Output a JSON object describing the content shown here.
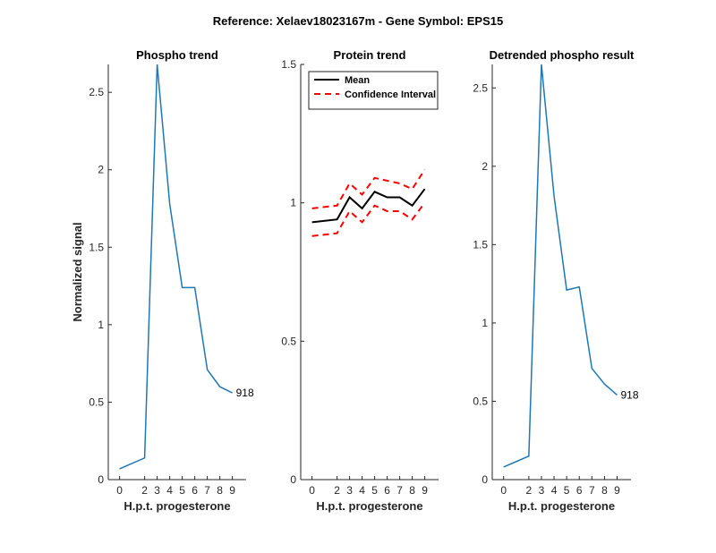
{
  "figure": {
    "title": "Reference:  Xelaev18023167m - Gene Symbol:  EPS15"
  },
  "chart_data": [
    {
      "type": "line",
      "title": "Phospho trend",
      "xlabel": "H.p.t. progesterone",
      "ylabel": "Normalized signal",
      "x": [
        0,
        2,
        3,
        4,
        5,
        6,
        7,
        8,
        9
      ],
      "xticks": [
        "0",
        "2",
        "3",
        "4",
        "5",
        "6",
        "7",
        "8",
        "9"
      ],
      "xlim": [
        -0.9,
        10.1
      ],
      "ylim": [
        0,
        2.68
      ],
      "yticks": [
        "0",
        "0.5",
        "1",
        "1.5",
        "2",
        "2.5"
      ],
      "series": [
        {
          "color": "#1f77b4",
          "values": [
            0.07,
            0.14,
            2.68,
            1.78,
            1.24,
            1.24,
            0.71,
            0.6,
            0.56
          ]
        }
      ],
      "annotation": {
        "text": "918",
        "x": 9,
        "y": 0.56
      },
      "grid": false,
      "legend": null
    },
    {
      "type": "line",
      "title": "Protein trend",
      "xlabel": "H.p.t. progesterone",
      "ylabel": "",
      "x": [
        0,
        2,
        3,
        4,
        5,
        6,
        7,
        8,
        9
      ],
      "xticks": [
        "0",
        "2",
        "3",
        "4",
        "5",
        "6",
        "7",
        "8",
        "9"
      ],
      "xlim": [
        -0.9,
        10.1
      ],
      "ylim": [
        0,
        1.5
      ],
      "yticks": [
        "0",
        "0.5",
        "1",
        "1.5"
      ],
      "series": [
        {
          "name": "Mean",
          "color": "#000000",
          "style": "solid",
          "values": [
            0.93,
            0.94,
            1.02,
            0.98,
            1.04,
            1.02,
            1.02,
            0.99,
            1.05
          ]
        },
        {
          "name": "Confidence Interval",
          "color": "#ff0000",
          "style": "dashed",
          "values": [
            0.98,
            0.99,
            1.07,
            1.03,
            1.09,
            1.08,
            1.07,
            1.05,
            1.12
          ]
        },
        {
          "color": "#ff0000",
          "style": "dashed",
          "values": [
            0.88,
            0.89,
            0.97,
            0.93,
            0.99,
            0.97,
            0.97,
            0.94,
            1.0
          ]
        }
      ],
      "legend": "top-right",
      "grid": false
    },
    {
      "type": "line",
      "title": "Detrended phospho result",
      "xlabel": "H.p.t. progesterone",
      "ylabel": "",
      "x": [
        0,
        2,
        3,
        4,
        5,
        6,
        7,
        8,
        9
      ],
      "xticks": [
        "0",
        "2",
        "3",
        "4",
        "5",
        "6",
        "7",
        "8",
        "9"
      ],
      "xlim": [
        -0.9,
        10.1
      ],
      "ylim": [
        0,
        2.65
      ],
      "yticks": [
        "0",
        "0.5",
        "1",
        "1.5",
        "2",
        "2.5"
      ],
      "series": [
        {
          "color": "#1f77b4",
          "values": [
            0.08,
            0.15,
            2.65,
            1.81,
            1.21,
            1.23,
            0.71,
            0.61,
            0.54
          ]
        }
      ],
      "annotation": {
        "text": "918",
        "x": 9,
        "y": 0.54
      },
      "grid": false,
      "legend": null
    }
  ]
}
